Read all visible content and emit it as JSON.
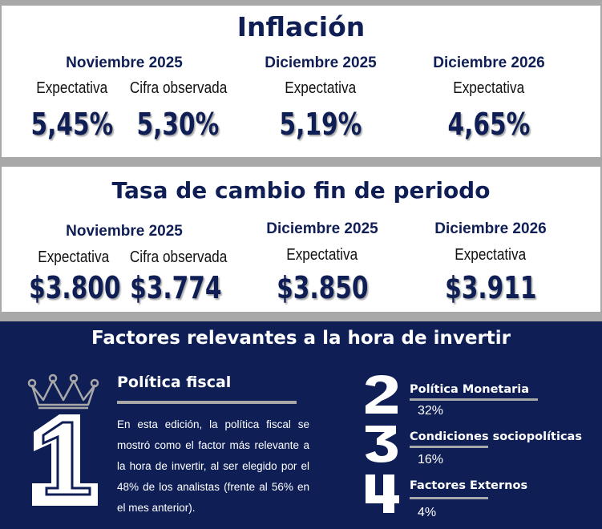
{
  "inflacion": {
    "title": "Inflación",
    "nov": {
      "period": "Noviembre 2025",
      "exp_label": "Expectativa",
      "exp_value": "5,45%",
      "obs_label": "Cifra observada",
      "obs_value": "5,30%"
    },
    "dic25": {
      "period": "Diciembre 2025",
      "label": "Expectativa",
      "value": "5,19%"
    },
    "dic26": {
      "period": "Diciembre 2026",
      "label": "Expectativa",
      "value": "4,65%"
    }
  },
  "tasa": {
    "title": "Tasa de cambio fin de periodo",
    "nov": {
      "period": "Noviembre 2025",
      "exp_label": "Expectativa",
      "exp_value": "$3.800",
      "obs_label": "Cifra observada",
      "obs_value": "$3.774"
    },
    "dic25": {
      "period": "Diciembre 2025",
      "label": "Expectativa",
      "value": "$3.850"
    },
    "dic26": {
      "period": "Diciembre 2026",
      "label": "Expectativa",
      "value": "$3.911"
    }
  },
  "factores": {
    "title": "Factores relevantes a la hora de invertir",
    "first": {
      "rank": "1",
      "icon": "crown-icon",
      "title": "Política fiscal",
      "text": "En esta edición, la política fiscal se mostró como el factor más relevante a la hora de invertir, al ser elegido por el 48% de los analistas (frente al 56% en el mes anterior)."
    },
    "ranking": [
      {
        "rank": "2",
        "title": "Política Monetaria",
        "value": "32%"
      },
      {
        "rank": "3",
        "title": "Condiciones sociopolíticas",
        "value": "16%"
      },
      {
        "rank": "4",
        "title": "Factores Externos",
        "value": "4%"
      }
    ]
  },
  "colors": {
    "navy": "#0f1f56",
    "gray": "#a8a8a8",
    "white": "#ffffff"
  }
}
